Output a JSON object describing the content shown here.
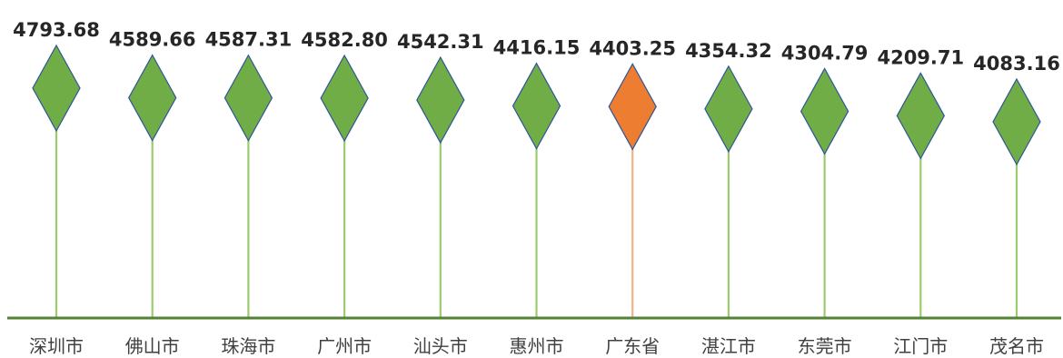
{
  "chart_data": {
    "type": "lollipop",
    "title": "",
    "xlabel": "",
    "ylabel": "",
    "categories": [
      "深圳市",
      "佛山市",
      "珠海市",
      "广州市",
      "汕头市",
      "惠州市",
      "广东省",
      "湛江市",
      "东莞市",
      "江门市",
      "茂名市"
    ],
    "values": [
      4793.68,
      4589.66,
      4587.31,
      4582.8,
      4542.31,
      4416.15,
      4403.25,
      4354.32,
      4304.79,
      4209.71,
      4083.16
    ],
    "value_labels": [
      "4793.68",
      "4589.66",
      "4587.31",
      "4582.80",
      "4542.31",
      "4416.15",
      "4403.25",
      "4354.32",
      "4304.79",
      "4209.71",
      "4083.16"
    ],
    "highlight_category": "广东省",
    "marker": "diamond",
    "grid": false,
    "legend": "none"
  },
  "colors": {
    "marker": "#70AD47",
    "marker_stroke": "#2F5597",
    "stem": "#9BCB6C",
    "highlight_marker": "#ED7D31",
    "highlight_stem": "#F4B183",
    "baseline": "#548235",
    "value_text": "#262626",
    "category_text": "#404040"
  }
}
